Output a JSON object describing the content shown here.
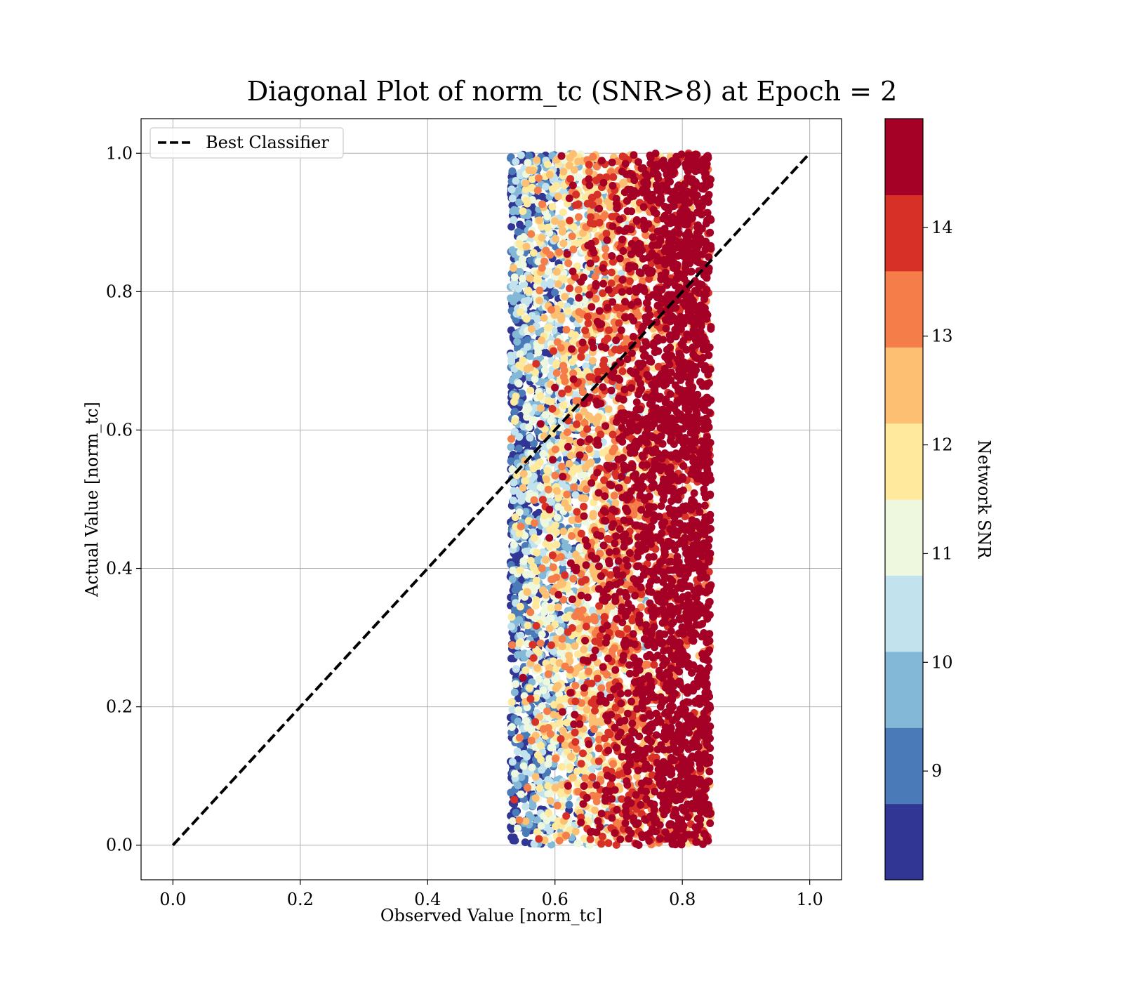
{
  "chart_data": {
    "type": "scatter",
    "title": "Diagonal Plot of norm_tc (SNR>8) at Epoch = 2",
    "xlabel": "Observed Value [norm_tc]",
    "ylabel": "Actual Value [norm_tc]",
    "xlim": [
      -0.05,
      1.05
    ],
    "ylim": [
      -0.05,
      1.05
    ],
    "xticks": [
      0.0,
      0.2,
      0.4,
      0.6,
      0.8,
      1.0
    ],
    "xtick_labels": [
      "0.0",
      "0.2",
      "0.4",
      "0.6",
      "0.8",
      "1.0"
    ],
    "yticks": [
      0.0,
      0.2,
      0.4,
      0.6,
      0.8,
      1.0
    ],
    "ytick_labels": [
      "0.0",
      "0.2",
      "0.4",
      "0.6",
      "0.8",
      "1.0"
    ],
    "grid": true,
    "legend": {
      "placement": "upper-left",
      "entries": [
        {
          "label": "Best Classifier",
          "style": "dashed",
          "color": "#000000"
        }
      ]
    },
    "reference_line": {
      "name": "Best Classifier",
      "x": [
        0.0,
        1.0
      ],
      "y": [
        0.0,
        1.0
      ],
      "color": "#000000",
      "style": "dashed"
    },
    "scatter_distribution": {
      "x_range": [
        0.53,
        0.855
      ],
      "y_range": [
        0.0,
        1.0
      ],
      "color_by": "Network SNR",
      "trend": "higher SNR concentrated at larger observed values (0.72–0.84)"
    },
    "colorbar": {
      "label": "Network SNR",
      "range": [
        8.0,
        15.0
      ],
      "tick_values": [
        9,
        10,
        11,
        12,
        13,
        14
      ],
      "tick_labels": [
        "9",
        "10",
        "11",
        "12",
        "13",
        "14"
      ],
      "levels": [
        {
          "from": 8.0,
          "to": 8.7,
          "color": "#313695"
        },
        {
          "from": 8.7,
          "to": 9.4,
          "color": "#4a7ab7"
        },
        {
          "from": 9.4,
          "to": 10.1,
          "color": "#83b8d7"
        },
        {
          "from": 10.1,
          "to": 10.8,
          "color": "#c2e3ee"
        },
        {
          "from": 10.8,
          "to": 11.5,
          "color": "#eef8df"
        },
        {
          "from": 11.5,
          "to": 12.2,
          "color": "#fee99d"
        },
        {
          "from": 12.2,
          "to": 12.9,
          "color": "#fdbf71"
        },
        {
          "from": 12.9,
          "to": 13.6,
          "color": "#f57d4a"
        },
        {
          "from": 13.6,
          "to": 14.3,
          "color": "#d73027"
        },
        {
          "from": 14.3,
          "to": 15.0,
          "color": "#a50026"
        }
      ]
    }
  }
}
